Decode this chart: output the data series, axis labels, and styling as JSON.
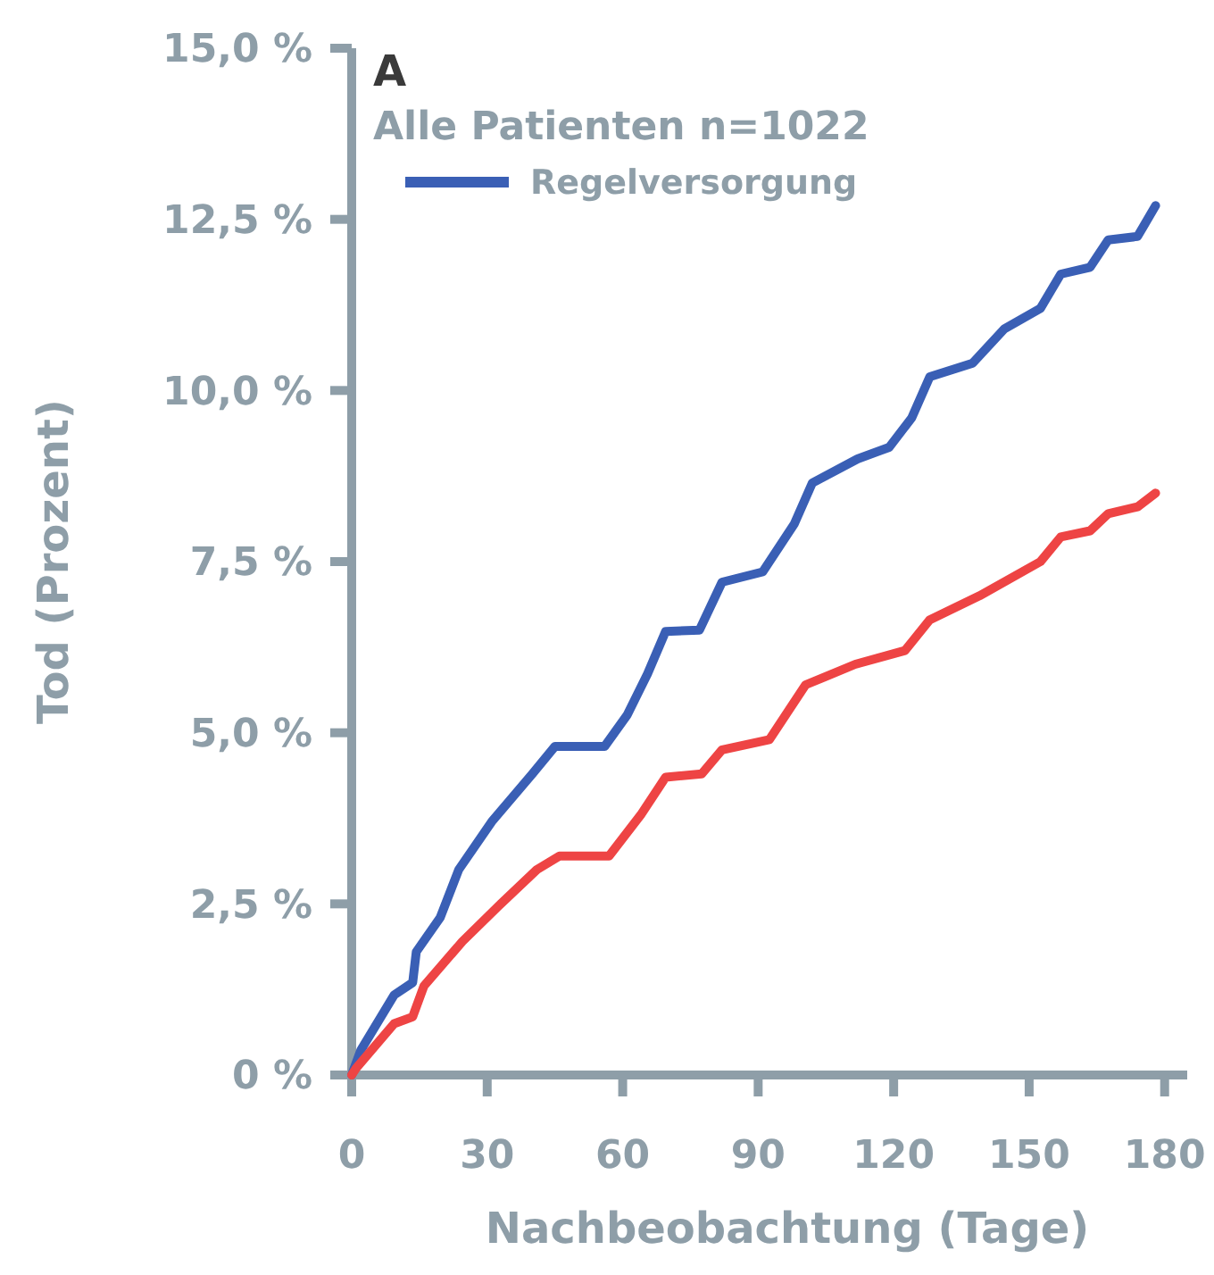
{
  "chart_data": {
    "type": "line",
    "title": "A",
    "subtitle": "Alle Patienten n=1022",
    "xlabel": "Nachbeobachtung (Tage)",
    "ylabel": "Tod (Prozent)",
    "xlim": [
      0,
      185
    ],
    "xticks": [
      0,
      30,
      60,
      90,
      120,
      150,
      180
    ],
    "ylim": [
      0,
      15
    ],
    "yticks": [
      {
        "value": 0,
        "label": "0 %"
      },
      {
        "value": 2.5,
        "label": "2,5 %"
      },
      {
        "value": 5,
        "label": "5,0 %"
      },
      {
        "value": 7.5,
        "label": "7,5 %"
      },
      {
        "value": 10,
        "label": "10,0 %"
      },
      {
        "value": 12.5,
        "label": "12,5 %"
      },
      {
        "value": 15,
        "label": "15,0 %"
      }
    ],
    "grid": false,
    "legend": "top left",
    "line_style": "solid",
    "marker": "none",
    "series": [
      {
        "name": "Regelversorgung",
        "color": "#3a5fb5",
        "x": [
          0,
          2,
          9.4,
          13.5,
          14.3,
          19.6,
          23.7,
          31,
          40,
          45,
          56,
          61,
          65.5,
          69.5,
          77,
          82,
          91,
          98,
          102,
          112,
          119,
          124,
          128,
          137.5,
          144.5,
          152.5,
          157,
          163.5,
          167.5,
          174,
          178
        ],
        "values": [
          0,
          0.36,
          1.17,
          1.35,
          1.8,
          2.3,
          3.0,
          3.7,
          4.4,
          4.8,
          4.8,
          5.26,
          5.86,
          6.48,
          6.5,
          7.2,
          7.35,
          8.05,
          8.65,
          9.0,
          9.17,
          9.6,
          10.2,
          10.4,
          10.9,
          11.2,
          11.7,
          11.8,
          12.2,
          12.25,
          12.7
        ]
      },
      {
        "color": "#ee4444",
        "x": [
          0,
          1,
          9.4,
          13.5,
          16,
          24.5,
          33,
          41,
          46,
          57,
          64,
          69.5,
          77.5,
          82,
          92.5,
          100.5,
          111.5,
          122.5,
          128,
          139,
          152.5,
          157,
          163.5,
          167.5,
          174,
          178
        ],
        "values": [
          0,
          0.1,
          0.75,
          0.85,
          1.3,
          1.95,
          2.5,
          3.0,
          3.2,
          3.2,
          3.8,
          4.35,
          4.4,
          4.75,
          4.9,
          5.7,
          6.0,
          6.2,
          6.65,
          7.0,
          7.5,
          7.86,
          7.95,
          8.2,
          8.3,
          8.5
        ]
      }
    ]
  }
}
